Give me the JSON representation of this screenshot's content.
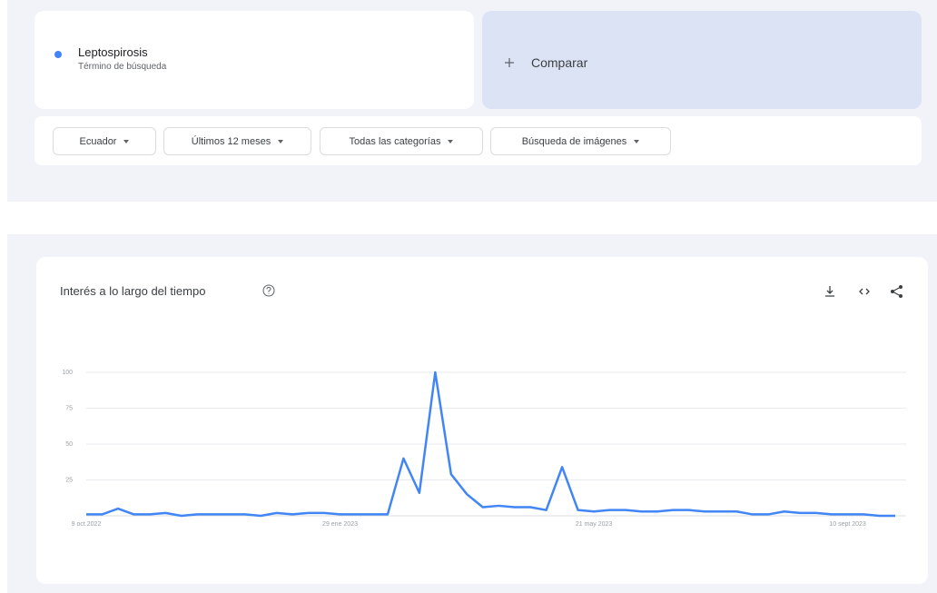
{
  "search": {
    "term": "Leptospirosis",
    "subtitle": "Término de búsqueda",
    "compare": "Comparar"
  },
  "filters": [
    "Ecuador",
    "Últimos 12 meses",
    "Todas las categorías",
    "Búsqueda de imágenes"
  ],
  "chart_data": {
    "type": "line",
    "title": "Interés a lo largo del tiempo",
    "categories": [
      "9 oct 2022",
      null,
      null,
      null,
      null,
      null,
      null,
      null,
      null,
      null,
      null,
      null,
      null,
      null,
      null,
      null,
      "29 ene 2023",
      null,
      null,
      null,
      null,
      null,
      null,
      null,
      null,
      null,
      null,
      null,
      null,
      null,
      null,
      null,
      "21 may 2023",
      null,
      null,
      null,
      null,
      null,
      null,
      null,
      null,
      null,
      null,
      null,
      null,
      null,
      null,
      null,
      "10 sept 2023",
      null,
      null,
      null
    ],
    "series": [
      {
        "color": "#4285f4",
        "values": [
          1,
          1,
          5,
          1,
          1,
          2,
          0,
          1,
          1,
          1,
          1,
          0,
          2,
          1,
          2,
          2,
          1,
          1,
          1,
          1,
          40,
          16,
          100,
          29,
          15,
          6,
          7,
          6,
          6,
          4,
          34,
          4,
          3,
          4,
          4,
          3,
          3,
          4,
          4,
          3,
          3,
          3,
          1,
          1,
          3,
          2,
          2,
          1,
          1,
          1,
          0,
          0
        ]
      }
    ],
    "ylim": [
      0,
      100
    ],
    "yticks": [
      25,
      50,
      75,
      100
    ],
    "grid": true
  }
}
